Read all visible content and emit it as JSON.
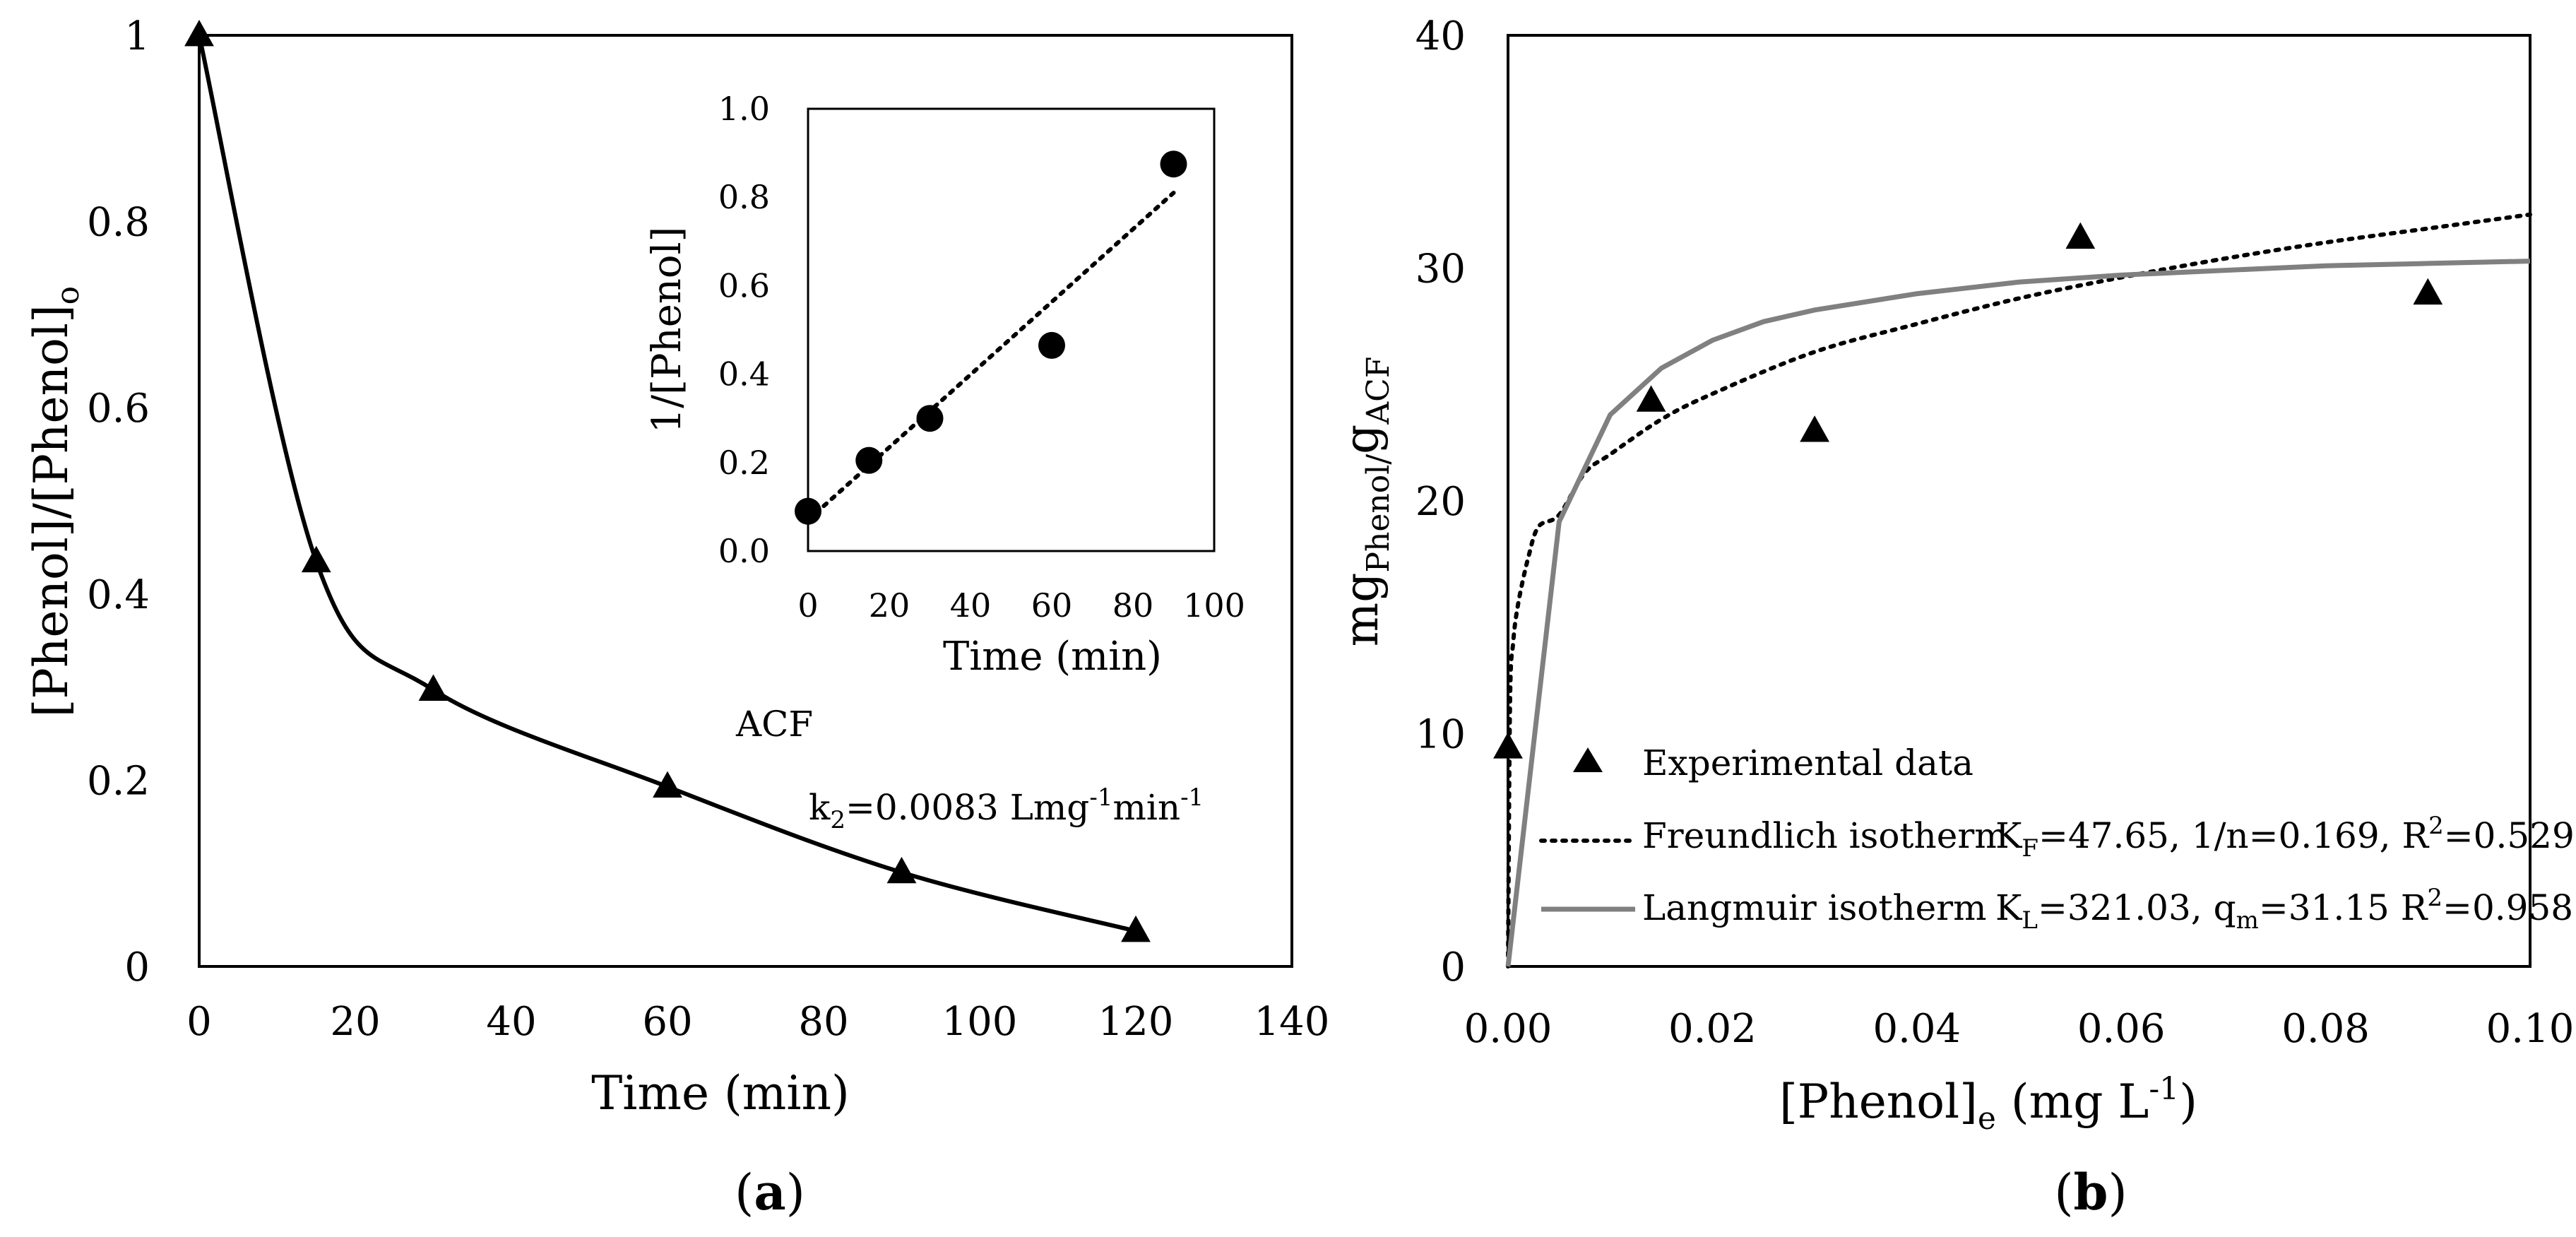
{
  "chart_data": [
    {
      "type": "line",
      "panel_label": "a",
      "title": "",
      "xlabel": "Time (min)",
      "ylabel_main": "[Phenol]/[Phenol]",
      "ylabel_sub": "o",
      "xlim": [
        0,
        140
      ],
      "ylim": [
        0,
        1
      ],
      "xticks": [
        "0",
        "20",
        "40",
        "60",
        "80",
        "100",
        "120",
        "140"
      ],
      "yticks": [
        "0",
        "0.2",
        "0.4",
        "0.6",
        "0.8",
        "1"
      ],
      "series": [
        {
          "name": "ACF",
          "marker": "triangle",
          "x": [
            0,
            15,
            30,
            60,
            90,
            120
          ],
          "y": [
            1.0,
            0.435,
            0.297,
            0.193,
            0.101,
            0.038
          ]
        }
      ],
      "annotations": {
        "label": "ACF",
        "rate_prefix": "k",
        "rate_sub": "2",
        "rate_value": "=0.0083 Lmg",
        "rate_sup1": "-1",
        "rate_mid": "min",
        "rate_sup2": "-1"
      },
      "inset": {
        "type": "scatter",
        "xlabel": "Time (min)",
        "ylabel": "1/[Phenol]",
        "xlim": [
          0,
          100
        ],
        "ylim": [
          0,
          1
        ],
        "xticks": [
          "0",
          "20",
          "40",
          "60",
          "80",
          "100"
        ],
        "yticks": [
          "0.0",
          "0.2",
          "0.4",
          "0.6",
          "0.8",
          "1.0"
        ],
        "points": {
          "x": [
            0,
            15,
            30,
            60,
            90
          ],
          "y": [
            0.09,
            0.205,
            0.3,
            0.465,
            0.875
          ]
        },
        "fit_line": {
          "x": [
            0,
            90
          ],
          "y": [
            0.07,
            0.81
          ]
        }
      }
    },
    {
      "type": "scatter",
      "panel_label": "b",
      "xlabel_main": "[Phenol]",
      "xlabel_sub": "e",
      "xlabel_units": " (mg L",
      "xlabel_sup": "-1",
      "xlabel_close": ")",
      "ylabel_main": "mg",
      "ylabel_sub": "Phenol/",
      "ylabel_main2": "g",
      "ylabel_sub2": "ACF",
      "xlim": [
        0,
        0.1
      ],
      "ylim": [
        0,
        40
      ],
      "xticks": [
        "0.00",
        "0.02",
        "0.04",
        "0.06",
        "0.08",
        "0.10"
      ],
      "yticks": [
        "0",
        "10",
        "20",
        "30",
        "40"
      ],
      "series": [
        {
          "name": "Experimental data",
          "marker": "triangle",
          "x": [
            0.0,
            0.014,
            0.03,
            0.056,
            0.09
          ],
          "y": [
            9.4,
            24.3,
            23.0,
            31.3,
            28.9
          ]
        },
        {
          "name": "Freundlich isotherm",
          "style": "dotted",
          "params": {
            "K": "47.65",
            "n_inv": "0.169"
          },
          "x": [
            0.0,
            0.0002,
            0.0005,
            0.001,
            0.002,
            0.003,
            0.005,
            0.0075,
            0.01,
            0.015,
            0.02,
            0.03,
            0.04,
            0.05,
            0.06,
            0.07,
            0.08,
            0.09,
            0.1
          ],
          "y": [
            0.0,
            11.4,
            13.9,
            15.6,
            17.6,
            18.9,
            19.4,
            21.2,
            22.0,
            23.5,
            24.6,
            26.4,
            27.6,
            28.7,
            29.6,
            30.4,
            31.1,
            31.7,
            32.3
          ]
        },
        {
          "name": "Langmuir isotherm",
          "style": "solid-gray",
          "x": [
            0.0,
            0.005,
            0.01,
            0.015,
            0.02,
            0.025,
            0.03,
            0.04,
            0.05,
            0.06,
            0.07,
            0.08,
            0.09,
            0.1
          ],
          "y": [
            0.0,
            19.1,
            23.7,
            25.7,
            26.9,
            27.7,
            28.2,
            28.9,
            29.4,
            29.7,
            29.9,
            30.1,
            30.2,
            30.3
          ]
        }
      ],
      "legend": {
        "experimental": "Experimental data",
        "freundlich_name": "Freundlich isotherm",
        "freundlich_k": "K",
        "freundlich_k_sub": "F",
        "freundlich_rest1": "=47.65, 1/n=0.169, R",
        "freundlich_r_sup": "2",
        "freundlich_rest2": "=0.529",
        "langmuir_name": "Langmuir isotherm",
        "langmuir_k": "K",
        "langmuir_k_sub": "L",
        "langmuir_rest1": "=321.03, q",
        "langmuir_q_sub": "m",
        "langmuir_rest2": "=31.15 R",
        "langmuir_r_sup": "2",
        "langmuir_rest3": "=0.958"
      }
    }
  ],
  "colors": {
    "axis": "#000000",
    "data": "#000000",
    "langmuir": "#808080"
  }
}
